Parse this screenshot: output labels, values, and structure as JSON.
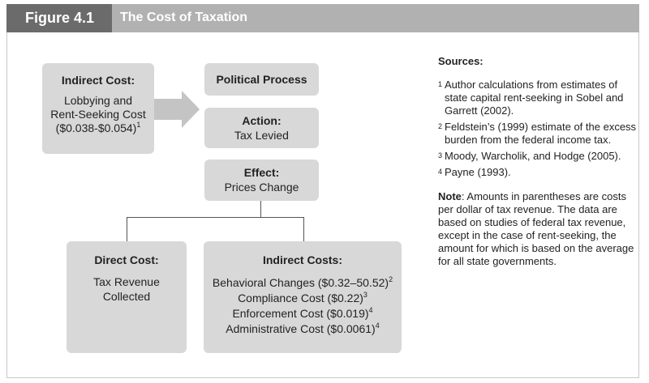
{
  "header": {
    "figure_label": "Figure 4.1",
    "title": "The Cost of Taxation"
  },
  "boxes": {
    "indirect_cost": {
      "title": "Indirect Cost:",
      "line1": "Lobbying and",
      "line2": "Rent-Seeking Cost",
      "line3": "($0.038-$0.054)",
      "sup": "1"
    },
    "political_process": {
      "title": "Political Process"
    },
    "action": {
      "title": "Action:",
      "line1": "Tax Levied"
    },
    "effect": {
      "title": "Effect:",
      "line1": "Prices Change"
    },
    "direct_cost": {
      "title": "Direct Cost:",
      "line1": "Tax Revenue",
      "line2": "Collected"
    },
    "indirect_costs": {
      "title": "Indirect Costs:",
      "items": [
        {
          "text": "Behavioral Changes ($0.32–50.52)",
          "sup": "2"
        },
        {
          "text": "Compliance Cost ($0.22)",
          "sup": "3"
        },
        {
          "text": "Enforcement Cost ($0.019)",
          "sup": "4"
        },
        {
          "text": "Administrative Cost ($0.0061)",
          "sup": "4"
        }
      ]
    }
  },
  "sources": {
    "heading": "Sources:",
    "items": [
      {
        "num": "1",
        "text": "Author calculations from estimates of state capital rent-seeking in Sobel and Garrett (2002)."
      },
      {
        "num": "2",
        "text": "Feldstein’s (1999) estimate of the excess burden from the federal income tax."
      },
      {
        "num": "3",
        "text": "Moody, Warcholik, and Hodge (2005)."
      },
      {
        "num": "4",
        "text": "Payne (1993)."
      }
    ],
    "note_label": "Note",
    "note_text": ": Amounts in parentheses are costs per dollar of tax revenue. The data are based on studies of federal tax revenue, except in the case of rent-seeking, the amount for which is based on the average for all state governments."
  },
  "colors": {
    "header_bar": "#b1b1b1",
    "figure_label_bg": "#6b6b6b",
    "box_fill": "#d8d8d8",
    "arrow_fill": "#c4c4c4",
    "connector": "#555555"
  }
}
